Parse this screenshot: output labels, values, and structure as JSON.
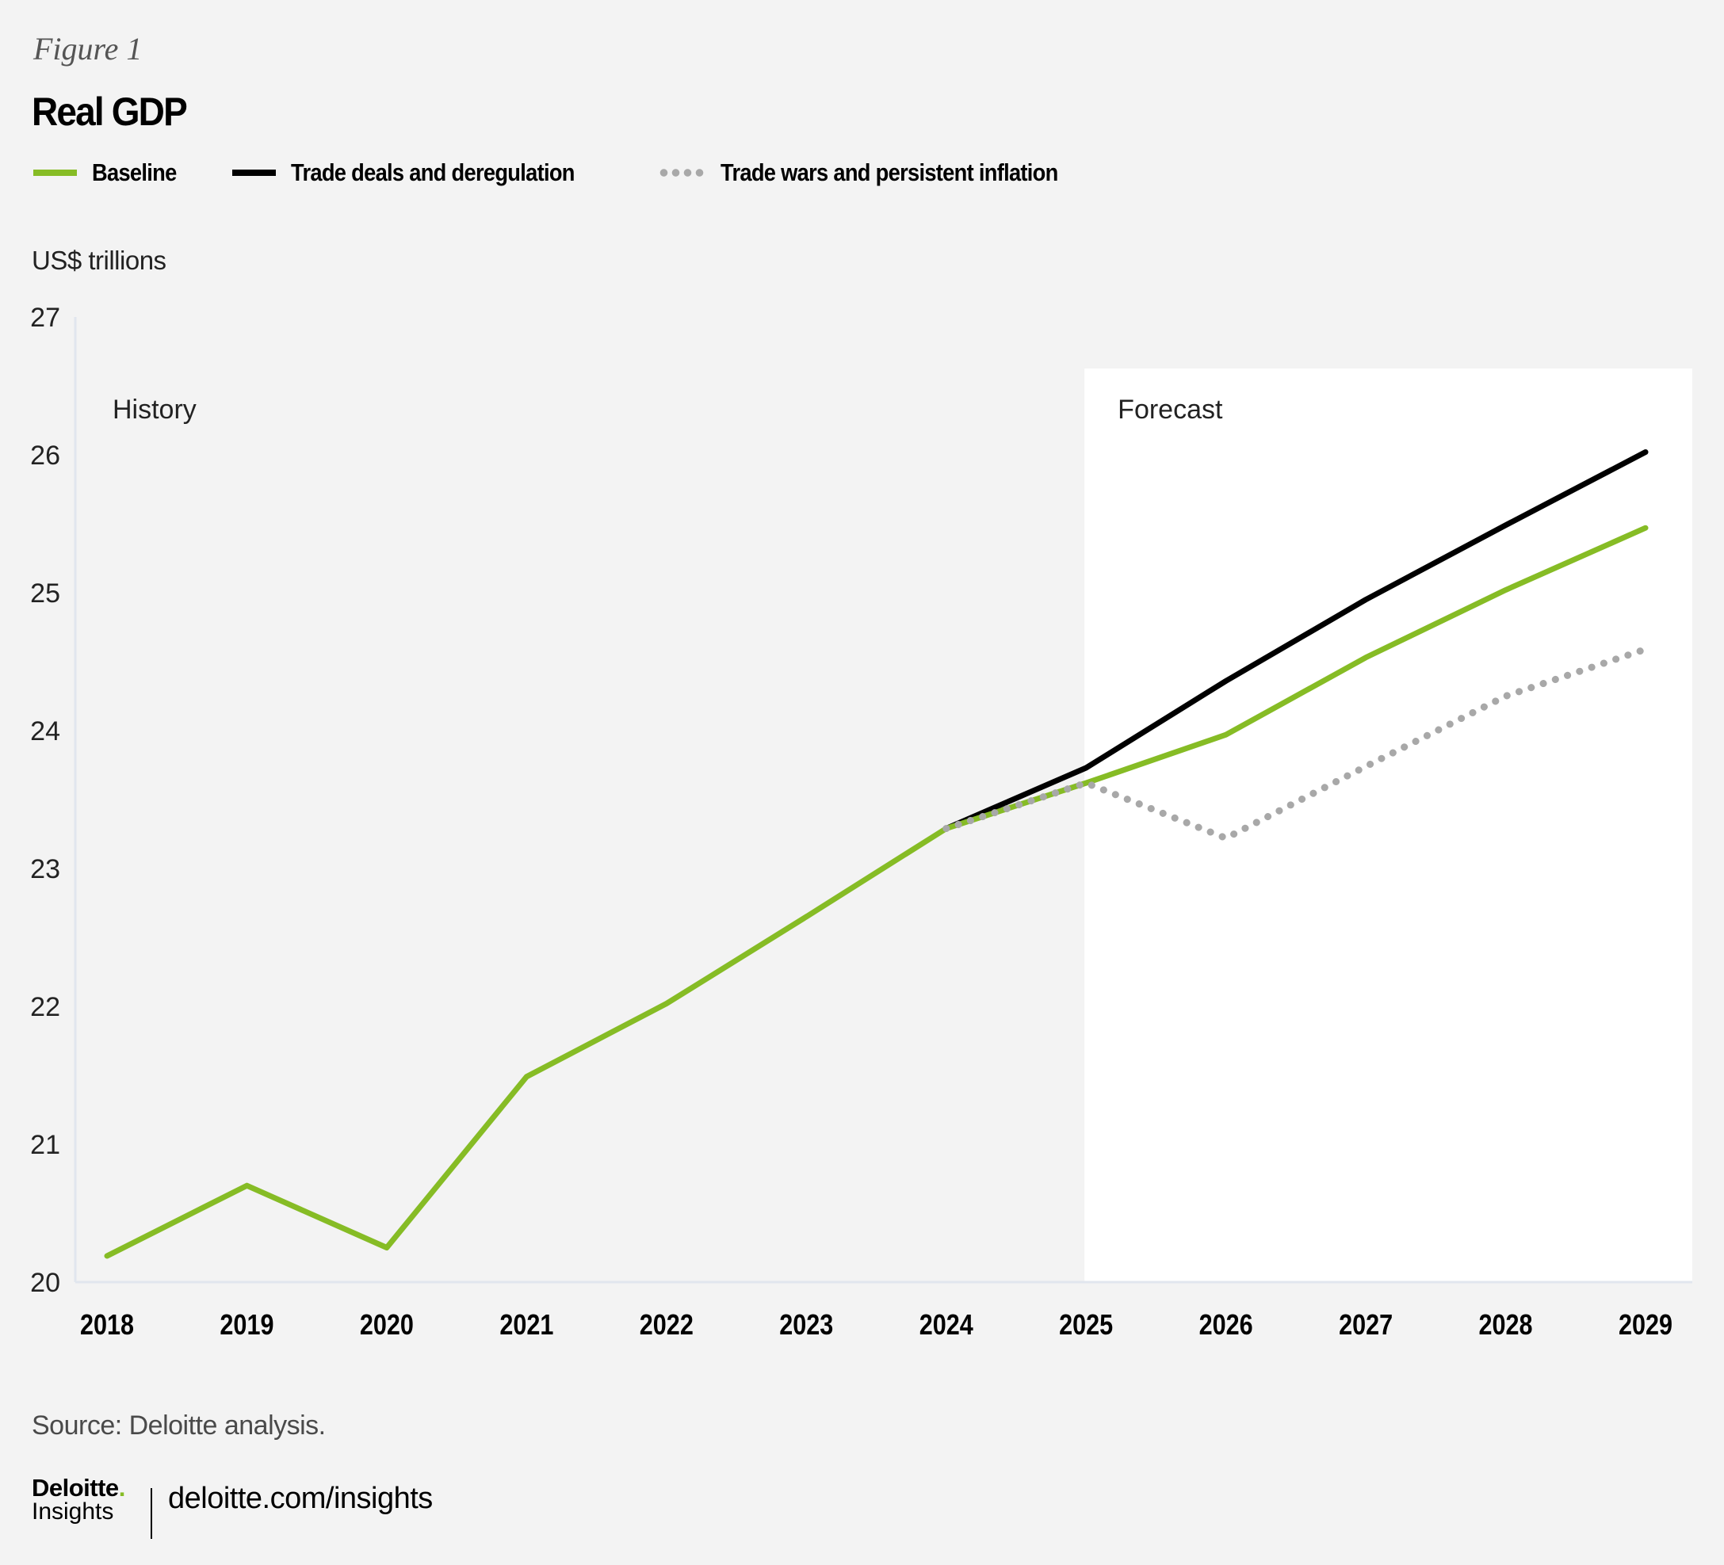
{
  "figure_label": "Figure 1",
  "title": "Real GDP",
  "legend": [
    {
      "label": "Baseline",
      "style": "solid",
      "color": "#86bc25"
    },
    {
      "label": "Trade deals and deregulation",
      "style": "solid",
      "color": "#000000"
    },
    {
      "label": "Trade wars and persistent inflation",
      "style": "dotted",
      "color": "#a8a8a8"
    }
  ],
  "unit_label": "US$ trillions",
  "annotations": {
    "history": "History",
    "forecast": "Forecast"
  },
  "source": "Source: Deloitte analysis.",
  "footer": {
    "brand": "Deloitte",
    "brand_dot": ".",
    "brand_sub": "Insights",
    "url": "deloitte.com/insights"
  },
  "colors": {
    "baseline": "#86bc25",
    "trade_deals": "#000000",
    "trade_wars": "#a8a8a8",
    "background": "#f3f3f3",
    "forecast_panel": "#ffffff",
    "axis": "#e1e6ee"
  },
  "chart_data": {
    "type": "line",
    "title": "Real GDP",
    "xlabel": "",
    "ylabel": "US$ trillions",
    "ylim": [
      20,
      27
    ],
    "yticks": [
      20,
      21,
      22,
      23,
      24,
      25,
      26,
      27
    ],
    "x": [
      "2018",
      "2019",
      "2020",
      "2021",
      "2022",
      "2023",
      "2024",
      "2025",
      "2026",
      "2027",
      "2028",
      "2029"
    ],
    "forecast_start": "2025",
    "grid": false,
    "legend_position": "top-left",
    "series": [
      {
        "name": "Baseline",
        "style": "solid",
        "values": [
          20.19,
          20.7,
          20.25,
          21.49,
          22.02,
          22.65,
          23.29,
          23.62,
          23.97,
          24.53,
          25.02,
          25.47
        ]
      },
      {
        "name": "Trade deals and deregulation",
        "style": "solid",
        "values": [
          null,
          null,
          null,
          null,
          null,
          null,
          23.29,
          23.73,
          24.36,
          24.95,
          25.49,
          26.02
        ]
      },
      {
        "name": "Trade wars and persistent inflation",
        "style": "dotted",
        "values": [
          null,
          null,
          null,
          null,
          null,
          null,
          23.29,
          23.62,
          23.22,
          23.74,
          24.25,
          24.59
        ]
      }
    ]
  }
}
